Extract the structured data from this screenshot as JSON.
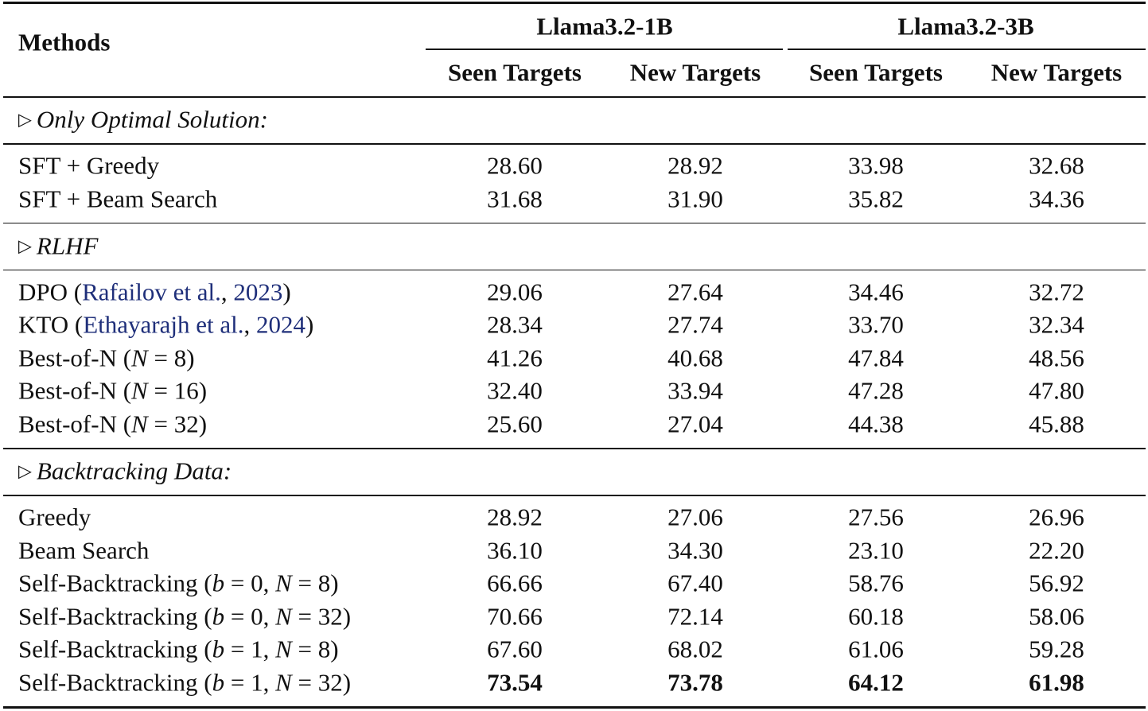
{
  "table": {
    "header": {
      "methods": "Methods",
      "groups": [
        "Llama3.2-1B",
        "Llama3.2-3B"
      ],
      "subheaders": [
        "Seen Targets",
        "New Targets",
        "Seen Targets",
        "New Targets"
      ]
    },
    "sections": [
      {
        "marker": "▷",
        "title": "Only Optimal Solution:",
        "rows": [
          {
            "method": [
              {
                "text": "SFT + Greedy"
              }
            ],
            "values": [
              "28.60",
              "28.92",
              "33.98",
              "32.68"
            ]
          },
          {
            "method": [
              {
                "text": "SFT + Beam Search"
              }
            ],
            "values": [
              "31.68",
              "31.90",
              "35.82",
              "34.36"
            ]
          }
        ]
      },
      {
        "marker": "▷",
        "title": "RLHF",
        "rows": [
          {
            "method": [
              {
                "text": "DPO ("
              },
              {
                "text": "Rafailov et al.",
                "link": true
              },
              {
                "text": ", "
              },
              {
                "text": "2023",
                "link": true
              },
              {
                "text": ")"
              }
            ],
            "values": [
              "29.06",
              "27.64",
              "34.46",
              "32.72"
            ]
          },
          {
            "method": [
              {
                "text": "KTO ("
              },
              {
                "text": "Ethayarajh et al.",
                "link": true
              },
              {
                "text": ", "
              },
              {
                "text": "2024",
                "link": true
              },
              {
                "text": ")"
              }
            ],
            "values": [
              "28.34",
              "27.74",
              "33.70",
              "32.34"
            ]
          },
          {
            "method": [
              {
                "text": "Best-of-N ("
              },
              {
                "text": "N",
                "italic": true
              },
              {
                "text": " = 8)"
              }
            ],
            "values": [
              "41.26",
              "40.68",
              "47.84",
              "48.56"
            ]
          },
          {
            "method": [
              {
                "text": "Best-of-N ("
              },
              {
                "text": "N",
                "italic": true
              },
              {
                "text": " = 16)"
              }
            ],
            "values": [
              "32.40",
              "33.94",
              "47.28",
              "47.80"
            ]
          },
          {
            "method": [
              {
                "text": "Best-of-N ("
              },
              {
                "text": "N",
                "italic": true
              },
              {
                "text": " = 32)"
              }
            ],
            "values": [
              "25.60",
              "27.04",
              "44.38",
              "45.88"
            ]
          }
        ]
      },
      {
        "marker": "▷",
        "title": "Backtracking Data:",
        "rows": [
          {
            "method": [
              {
                "text": "Greedy"
              }
            ],
            "values": [
              "28.92",
              "27.06",
              "27.56",
              "26.96"
            ]
          },
          {
            "method": [
              {
                "text": "Beam Search"
              }
            ],
            "values": [
              "36.10",
              "34.30",
              "23.10",
              "22.20"
            ]
          },
          {
            "method": [
              {
                "text": "Self-Backtracking ("
              },
              {
                "text": "b",
                "italic": true
              },
              {
                "text": " = 0, "
              },
              {
                "text": "N",
                "italic": true
              },
              {
                "text": " = 8)"
              }
            ],
            "values": [
              "66.66",
              "67.40",
              "58.76",
              "56.92"
            ]
          },
          {
            "method": [
              {
                "text": "Self-Backtracking ("
              },
              {
                "text": "b",
                "italic": true
              },
              {
                "text": " = 0, "
              },
              {
                "text": "N",
                "italic": true
              },
              {
                "text": " = 32)"
              }
            ],
            "values": [
              "70.66",
              "72.14",
              "60.18",
              "58.06"
            ]
          },
          {
            "method": [
              {
                "text": "Self-Backtracking ("
              },
              {
                "text": "b",
                "italic": true
              },
              {
                "text": " = 1, "
              },
              {
                "text": "N",
                "italic": true
              },
              {
                "text": " = 8)"
              }
            ],
            "values": [
              "67.60",
              "68.02",
              "61.06",
              "59.28"
            ]
          },
          {
            "method": [
              {
                "text": "Self-Backtracking ("
              },
              {
                "text": "b",
                "italic": true
              },
              {
                "text": " = 1, "
              },
              {
                "text": "N",
                "italic": true
              },
              {
                "text": " = 32)"
              }
            ],
            "values": [
              "73.54",
              "73.78",
              "64.12",
              "61.98"
            ],
            "bold": true
          }
        ]
      }
    ]
  }
}
